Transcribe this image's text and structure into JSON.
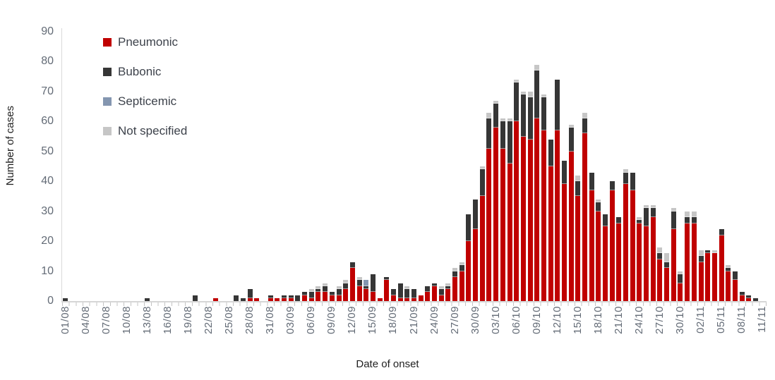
{
  "chart_data": {
    "type": "bar",
    "subtype": "stacked-daily-epicurve",
    "title": "",
    "xlabel": "Date of onset",
    "ylabel": "Number of cases",
    "ylim": [
      0,
      90
    ],
    "ytick_step": 10,
    "ytick_labels": [
      "0",
      "10",
      "20",
      "30",
      "40",
      "50",
      "60",
      "70",
      "80",
      "90"
    ],
    "grid": false,
    "legend_position": "top-left-inside",
    "x_tick_every": 3,
    "x_tick_labels": [
      "01/08",
      "04/08",
      "07/08",
      "10/08",
      "13/08",
      "16/08",
      "19/08",
      "22/08",
      "25/08",
      "28/08",
      "31/08",
      "03/09",
      "06/09",
      "09/09",
      "12/09",
      "15/09",
      "18/09",
      "21/09",
      "24/09",
      "27/09",
      "30/09",
      "03/10",
      "06/10",
      "09/10",
      "12/10",
      "15/10",
      "18/10",
      "21/10",
      "24/10",
      "27/10",
      "30/10",
      "02/11",
      "05/11",
      "08/11",
      "11/11"
    ],
    "categories": [
      "01/08",
      "02/08",
      "03/08",
      "04/08",
      "05/08",
      "06/08",
      "07/08",
      "08/08",
      "09/08",
      "10/08",
      "11/08",
      "12/08",
      "13/08",
      "14/08",
      "15/08",
      "16/08",
      "17/08",
      "18/08",
      "19/08",
      "20/08",
      "21/08",
      "22/08",
      "23/08",
      "24/08",
      "25/08",
      "26/08",
      "27/08",
      "28/08",
      "29/08",
      "30/08",
      "31/08",
      "01/09",
      "02/09",
      "03/09",
      "04/09",
      "05/09",
      "06/09",
      "07/09",
      "08/09",
      "09/09",
      "10/09",
      "11/09",
      "12/09",
      "13/09",
      "14/09",
      "15/09",
      "16/09",
      "17/09",
      "18/09",
      "19/09",
      "20/09",
      "21/09",
      "22/09",
      "23/09",
      "24/09",
      "25/09",
      "26/09",
      "27/09",
      "28/09",
      "29/09",
      "30/09",
      "01/10",
      "02/10",
      "03/10",
      "04/10",
      "05/10",
      "06/10",
      "07/10",
      "08/10",
      "09/10",
      "10/10",
      "11/10",
      "12/10",
      "13/10",
      "14/10",
      "15/10",
      "16/10",
      "17/10",
      "18/10",
      "19/10",
      "20/10",
      "21/10",
      "22/10",
      "23/10",
      "24/10",
      "25/10",
      "26/10",
      "27/10",
      "28/10",
      "29/10",
      "30/10",
      "31/10",
      "01/11",
      "02/11",
      "03/11",
      "04/11",
      "05/11",
      "06/11",
      "07/11",
      "08/11",
      "09/11",
      "10/11",
      "11/11"
    ],
    "series": [
      {
        "name": "Pneumonic",
        "key": "pneumonic",
        "color": "#c00000",
        "values": [
          0,
          0,
          0,
          0,
          0,
          0,
          0,
          0,
          0,
          0,
          0,
          0,
          0,
          0,
          0,
          0,
          0,
          0,
          0,
          0,
          0,
          0,
          1,
          0,
          0,
          0,
          0,
          1,
          1,
          0,
          1,
          1,
          1,
          1,
          0,
          2,
          1,
          3,
          3,
          2,
          2,
          4,
          11,
          5,
          4,
          3,
          1,
          7,
          2,
          1,
          1,
          1,
          2,
          3,
          5,
          2,
          4,
          8,
          10,
          20,
          24,
          35,
          51,
          58,
          51,
          46,
          60,
          55,
          54,
          61,
          57,
          45,
          57,
          39,
          50,
          35,
          56,
          37,
          30,
          25,
          37,
          26,
          39,
          37,
          26,
          25,
          28,
          14,
          11,
          24,
          6,
          26,
          26,
          13,
          16,
          16,
          22,
          10,
          7,
          2,
          1,
          0,
          0
        ]
      },
      {
        "name": "Bubonic",
        "key": "bubonic",
        "color": "#363636",
        "values": [
          1,
          0,
          0,
          0,
          0,
          0,
          0,
          0,
          0,
          0,
          0,
          0,
          1,
          0,
          0,
          0,
          0,
          0,
          0,
          2,
          0,
          0,
          0,
          0,
          0,
          2,
          1,
          3,
          0,
          0,
          1,
          0,
          1,
          1,
          2,
          1,
          2,
          1,
          2,
          1,
          2,
          2,
          2,
          2,
          1,
          6,
          0,
          1,
          2,
          5,
          3,
          3,
          0,
          2,
          1,
          2,
          1,
          2,
          2,
          9,
          10,
          9,
          10,
          8,
          9,
          14,
          13,
          14,
          14,
          16,
          11,
          9,
          17,
          8,
          8,
          5,
          5,
          6,
          3,
          4,
          3,
          2,
          4,
          6,
          1,
          6,
          3,
          2,
          2,
          6,
          3,
          2,
          2,
          2,
          1,
          0,
          2,
          1,
          3,
          1,
          1,
          1,
          0
        ]
      },
      {
        "name": "Septicemic",
        "key": "septicemic",
        "color": "#8496b0",
        "values": [
          0,
          0,
          0,
          0,
          0,
          0,
          0,
          0,
          0,
          0,
          0,
          0,
          0,
          0,
          0,
          0,
          0,
          0,
          0,
          0,
          0,
          0,
          0,
          0,
          0,
          0,
          0,
          0,
          0,
          0,
          0,
          0,
          0,
          0,
          0,
          0,
          0,
          0,
          0,
          0,
          0,
          0,
          0,
          0,
          2,
          0,
          0,
          0,
          0,
          0,
          0,
          0,
          0,
          0,
          0,
          0,
          0,
          0,
          0,
          0,
          0,
          0,
          0,
          0,
          0,
          0,
          0,
          0,
          0,
          0,
          0,
          0,
          0,
          0,
          0,
          0,
          0,
          0,
          0,
          0,
          0,
          0,
          0,
          0,
          0,
          0,
          0,
          0,
          0,
          0,
          0,
          0,
          0,
          0,
          0,
          0,
          0,
          0,
          0,
          0,
          0,
          0,
          0
        ]
      },
      {
        "name": "Not specified",
        "key": "not_specified",
        "color": "#c6c6c6",
        "values": [
          0,
          0,
          0,
          0,
          0,
          0,
          0,
          0,
          0,
          0,
          0,
          0,
          0,
          0,
          0,
          0,
          0,
          0,
          0,
          0,
          0,
          0,
          0,
          0,
          0,
          0,
          0,
          0,
          0,
          0,
          0,
          0,
          0,
          0,
          0,
          0,
          1,
          1,
          1,
          0,
          1,
          1,
          0,
          1,
          0,
          0,
          0,
          0,
          0,
          0,
          1,
          0,
          0,
          0,
          0,
          1,
          1,
          1,
          1,
          0,
          0,
          1,
          2,
          1,
          1,
          1,
          1,
          1,
          2,
          2,
          1,
          0,
          0,
          0,
          1,
          2,
          2,
          0,
          1,
          0,
          0,
          0,
          1,
          0,
          1,
          1,
          1,
          2,
          3,
          1,
          1,
          2,
          2,
          2,
          0,
          1,
          0,
          1,
          0,
          0,
          0,
          0,
          0
        ]
      }
    ]
  }
}
